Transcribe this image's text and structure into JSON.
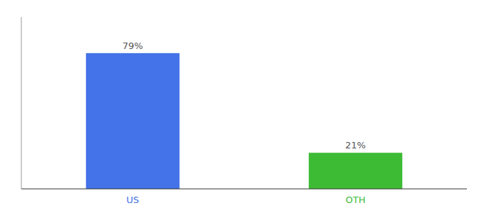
{
  "chart_data": {
    "type": "bar",
    "categories": [
      "US",
      "OTH"
    ],
    "values": [
      79,
      21
    ],
    "colors": [
      "#4472e8",
      "#3dbb35"
    ],
    "ylim": [
      0,
      100
    ],
    "data_labels": true,
    "value_labels": [
      "79%",
      "21%"
    ],
    "tick_labels": "x"
  }
}
